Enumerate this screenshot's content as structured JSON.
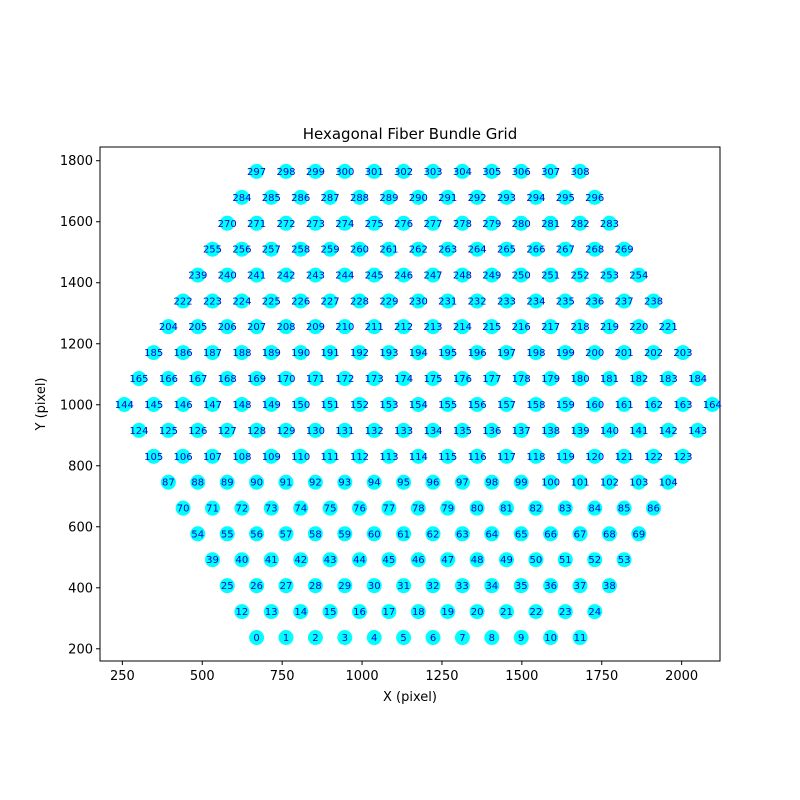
{
  "chart_data": {
    "type": "scatter",
    "title": "Hexagonal Fiber Bundle Grid",
    "xlabel": "X (pixel)",
    "ylabel": "Y (pixel)",
    "xlim": [
      180,
      2120
    ],
    "ylim": [
      160,
      1845
    ],
    "xticks": [
      250,
      500,
      750,
      1000,
      1250,
      1500,
      1750,
      2000
    ],
    "yticks": [
      200,
      400,
      600,
      800,
      1000,
      1200,
      1400,
      1600,
      1800
    ],
    "marker_color": "#00ffff",
    "label_color": "#0000cc",
    "grid": false,
    "legend": "none",
    "rows": [
      {
        "y": 237,
        "x0": 670,
        "count": 12,
        "start_id": 0
      },
      {
        "y": 322,
        "x0": 624,
        "count": 13,
        "start_id": 12
      },
      {
        "y": 407,
        "x0": 578,
        "count": 14,
        "start_id": 25
      },
      {
        "y": 492,
        "x0": 532,
        "count": 15,
        "start_id": 39
      },
      {
        "y": 577,
        "x0": 486,
        "count": 16,
        "start_id": 54
      },
      {
        "y": 661,
        "x0": 440,
        "count": 17,
        "start_id": 70
      },
      {
        "y": 746,
        "x0": 394,
        "count": 18,
        "start_id": 87
      },
      {
        "y": 831,
        "x0": 348,
        "count": 19,
        "start_id": 105
      },
      {
        "y": 916,
        "x0": 302,
        "count": 20,
        "start_id": 124
      },
      {
        "y": 1001,
        "x0": 256,
        "count": 21,
        "start_id": 144
      },
      {
        "y": 1086,
        "x0": 302,
        "count": 20,
        "start_id": 165
      },
      {
        "y": 1171,
        "x0": 348,
        "count": 19,
        "start_id": 185
      },
      {
        "y": 1256,
        "x0": 394,
        "count": 18,
        "start_id": 204
      },
      {
        "y": 1340,
        "x0": 440,
        "count": 17,
        "start_id": 222
      },
      {
        "y": 1425,
        "x0": 486,
        "count": 16,
        "start_id": 239
      },
      {
        "y": 1510,
        "x0": 532,
        "count": 15,
        "start_id": 255
      },
      {
        "y": 1595,
        "x0": 578,
        "count": 14,
        "start_id": 270
      },
      {
        "y": 1680,
        "x0": 624,
        "count": 13,
        "start_id": 284
      },
      {
        "y": 1765,
        "x0": 670,
        "count": 12,
        "start_id": 297
      }
    ],
    "x_step": 92
  }
}
